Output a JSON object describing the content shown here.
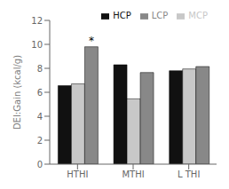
{
  "chart_data": {
    "type": "bar",
    "categories": [
      "HTHI",
      "MTHI",
      "L THI"
    ],
    "series": [
      {
        "name": "HCP",
        "color": "#111111",
        "values": [
          6.55,
          8.3,
          7.8
        ]
      },
      {
        "name": "MCP",
        "color": "#c8c8c8",
        "values": [
          6.7,
          5.45,
          7.95
        ]
      },
      {
        "name": "LCP",
        "color": "#888888",
        "values": [
          9.8,
          7.65,
          8.15
        ]
      }
    ],
    "ylabel": "DEI:Gain (kcal/g)",
    "ylim": [
      0,
      12
    ],
    "yticks": [
      0,
      2,
      4,
      6,
      8,
      10,
      12
    ],
    "legend": "upper right",
    "annotations": [
      {
        "text": "*",
        "category": "HTHI",
        "series": "LCP"
      }
    ]
  }
}
